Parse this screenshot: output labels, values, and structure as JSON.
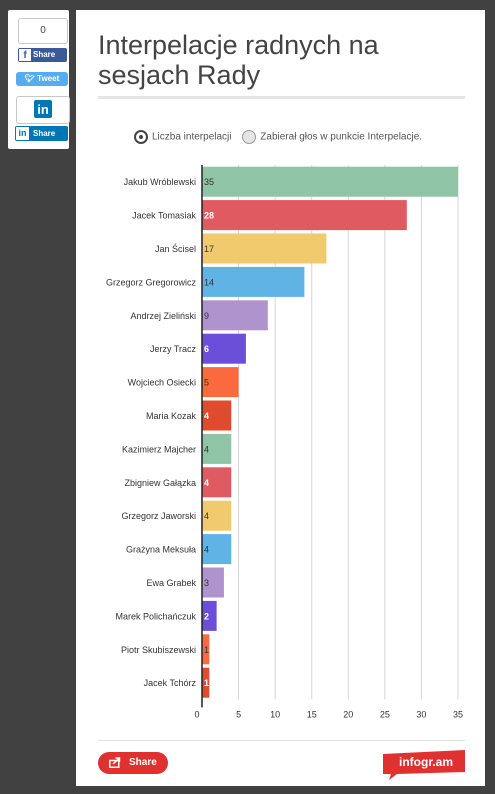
{
  "social": {
    "count": "0",
    "fb_label": "Share",
    "fb_icon": "f",
    "tweet_label": "Tweet",
    "linkedin_logo": "in",
    "linkedin_label": "Share"
  },
  "chart_data": {
    "type": "bar",
    "orientation": "horizontal",
    "title": "Interpelacje radnych na sesjach Rady",
    "legend": [
      "Liczba interpelacji",
      "Zabierał głos w punkcie Interpelacje."
    ],
    "categories": [
      "Jakub Wróblewski",
      "Jacek Tomasiak",
      "Jan Ścisel",
      "Grzegorz Gregorowicz",
      "Andrzej Zieliński",
      "Jerzy Tracz",
      "Wojciech Osiecki",
      "Maria Kozak",
      "Kazimierz Majcher",
      "Zbigniew Gałązka",
      "Grzegorz Jaworski",
      "Grażyna Meksuła",
      "Ewa Grabek",
      "Marek Polichańczuk",
      "Piotr Skubiszewski",
      "Jacek Tchórz"
    ],
    "values": [
      35,
      28,
      17,
      14,
      9,
      6,
      5,
      4,
      4,
      4,
      4,
      4,
      3,
      2,
      1,
      1
    ],
    "colors": [
      "#8fc4a6",
      "#e05a61",
      "#f0ca6c",
      "#5fb3e5",
      "#ae93cc",
      "#6b4fd8",
      "#fb6a3f",
      "#e04a2e",
      "#8fc4a6",
      "#e05a61",
      "#f0ca6c",
      "#5fb3e5",
      "#ae93cc",
      "#6b4fd8",
      "#fb6a3f",
      "#e04a2e"
    ],
    "label_colors": [
      "#333",
      "#fff",
      "#333",
      "#333",
      "#333",
      "#fff",
      "#333",
      "#fff",
      "#333",
      "#fff",
      "#333",
      "#333",
      "#333",
      "#fff",
      "#333",
      "#fff"
    ],
    "xticks": [
      0,
      5,
      10,
      15,
      20,
      25,
      30,
      35
    ],
    "xlim": [
      0,
      35
    ],
    "grid": true
  },
  "footer": {
    "share_label": "Share",
    "brand": "infogr.am",
    "brand_color": "#e03131"
  }
}
